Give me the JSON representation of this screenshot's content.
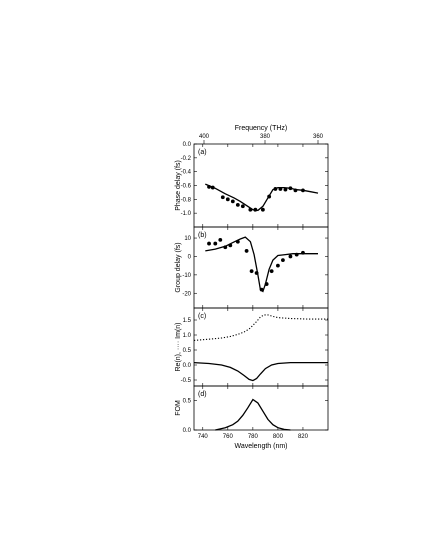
{
  "chart_data": [
    {
      "panel": "(a)",
      "type": "line",
      "ylabel": "Phase delay (fs)",
      "top_xlabel": "Frequency (THz)",
      "top_ticks": [
        400,
        380,
        360
      ],
      "xlim": [
        733,
        840
      ],
      "ylim": [
        -1.2,
        0.0
      ],
      "yticks": [
        -1.0,
        -0.8,
        -0.6,
        -0.4,
        -0.2,
        0.0
      ],
      "ytick_labels": [
        "-1.0",
        "-0.8",
        "-0.6",
        "-0.4",
        "-0.2",
        "0.0"
      ],
      "series": [
        {
          "style": "solid",
          "x": [
            742,
            750,
            758,
            765,
            770,
            775,
            780,
            784,
            788,
            792,
            796,
            800,
            805,
            810,
            815,
            820,
            826,
            832
          ],
          "y": [
            -0.58,
            -0.64,
            -0.72,
            -0.78,
            -0.83,
            -0.89,
            -0.95,
            -0.96,
            -0.9,
            -0.78,
            -0.66,
            -0.63,
            -0.63,
            -0.64,
            -0.66,
            -0.67,
            -0.69,
            -0.71
          ]
        },
        {
          "style": "points",
          "x": [
            745,
            748,
            756,
            760,
            764,
            768,
            772,
            778,
            782,
            788,
            793,
            798,
            802,
            806,
            810,
            814,
            820
          ],
          "y": [
            -0.62,
            -0.63,
            -0.77,
            -0.8,
            -0.83,
            -0.88,
            -0.9,
            -0.95,
            -0.95,
            -0.95,
            -0.76,
            -0.65,
            -0.65,
            -0.66,
            -0.64,
            -0.67,
            -0.67
          ]
        }
      ]
    },
    {
      "panel": "(b)",
      "type": "line",
      "ylabel": "Group delay (fs)",
      "xlim": [
        733,
        840
      ],
      "ylim": [
        -28,
        16
      ],
      "yticks": [
        -20,
        -10,
        0,
        10
      ],
      "ytick_labels": [
        "-20",
        "-10",
        "0",
        "10"
      ],
      "series": [
        {
          "style": "solid",
          "x": [
            742,
            750,
            758,
            764,
            770,
            774,
            778,
            781,
            784,
            786,
            788,
            790,
            793,
            796,
            800,
            806,
            812,
            820,
            832
          ],
          "y": [
            3,
            4,
            5.5,
            7.5,
            9.5,
            10.5,
            8,
            1,
            -10,
            -18,
            -19,
            -15,
            -7,
            -2,
            0.5,
            1,
            1.5,
            1.5,
            1.5
          ]
        },
        {
          "style": "points",
          "x": [
            745,
            750,
            754,
            758,
            762,
            768,
            775,
            779,
            783,
            787,
            791,
            795,
            800,
            804,
            810,
            815,
            820
          ],
          "y": [
            7,
            7,
            9,
            5,
            6,
            8,
            3,
            -8,
            -9,
            -18,
            -15,
            -8,
            -5,
            -2,
            0,
            1,
            2
          ]
        }
      ]
    },
    {
      "panel": "(c)",
      "type": "line",
      "ylabel": "Re(n), ···· Im(n)",
      "xlim": [
        733,
        840
      ],
      "ylim": [
        -0.7,
        1.9
      ],
      "yticks": [
        -0.5,
        0.0,
        0.5,
        1.0,
        1.5
      ],
      "ytick_labels": [
        "-0.5",
        "0.0",
        "0.5",
        "1.0",
        "1.5"
      ],
      "series": [
        {
          "style": "solid",
          "x": [
            733,
            745,
            755,
            762,
            768,
            773,
            777,
            780,
            783,
            786,
            790,
            795,
            800,
            810,
            825,
            840
          ],
          "y": [
            0.08,
            0.05,
            0.0,
            -0.08,
            -0.2,
            -0.35,
            -0.48,
            -0.52,
            -0.45,
            -0.3,
            -0.12,
            0.0,
            0.05,
            0.08,
            0.08,
            0.08
          ]
        },
        {
          "style": "dotted",
          "x": [
            733,
            745,
            755,
            762,
            768,
            773,
            777,
            780,
            783,
            786,
            789,
            792,
            796,
            800,
            810,
            825,
            840
          ],
          "y": [
            0.82,
            0.86,
            0.9,
            0.95,
            1.02,
            1.1,
            1.2,
            1.32,
            1.45,
            1.6,
            1.67,
            1.67,
            1.62,
            1.58,
            1.55,
            1.53,
            1.53
          ]
        }
      ]
    },
    {
      "panel": "(d)",
      "type": "line",
      "ylabel": "FOM",
      "xlabel": "Wavelength (nm)",
      "xlim": [
        733,
        840
      ],
      "xticks": [
        740,
        760,
        780,
        800,
        820
      ],
      "ylim": [
        0,
        0.75
      ],
      "yticks": [
        0,
        0.5
      ],
      "ytick_labels": [
        "0.0",
        "0.5"
      ],
      "series": [
        {
          "style": "solid",
          "x": [
            750,
            758,
            764,
            768,
            772,
            776,
            780,
            784,
            788,
            792,
            796,
            800,
            805,
            810
          ],
          "y": [
            0.0,
            0.04,
            0.09,
            0.15,
            0.25,
            0.38,
            0.52,
            0.46,
            0.32,
            0.18,
            0.09,
            0.04,
            0.01,
            0.0
          ]
        }
      ]
    }
  ]
}
